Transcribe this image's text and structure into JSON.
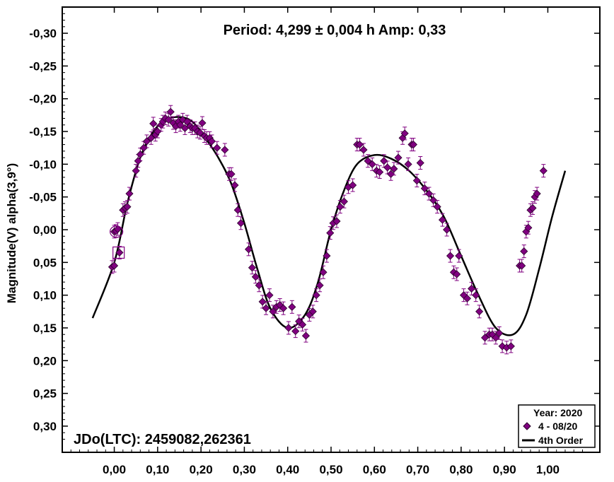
{
  "chart_data": {
    "type": "scatter",
    "title": "Period: 4,299 ± 0,004 h  Amp: 0,33",
    "ylabel": "Magnitude(V) alpha(3,9°)",
    "xlabel": "",
    "annotation": "JDo(LTC): 2459082,262361",
    "xlim": [
      -0.12,
      1.12
    ],
    "ylim": [
      -0.34,
      0.34
    ],
    "y_inverted": true,
    "x_ticks": [
      0.0,
      0.1,
      0.2,
      0.3,
      0.4,
      0.5,
      0.6,
      0.7,
      0.8,
      0.9,
      1.0
    ],
    "x_tick_labels": [
      "0,00",
      "0,10",
      "0,20",
      "0,30",
      "0,40",
      "0,50",
      "0,60",
      "0,70",
      "0,80",
      "0,90",
      "1,00"
    ],
    "y_ticks": [
      -0.3,
      -0.25,
      -0.2,
      -0.15,
      -0.1,
      -0.05,
      0.0,
      0.05,
      0.1,
      0.15,
      0.2,
      0.25,
      0.3
    ],
    "y_tick_labels": [
      "-0,30",
      "-0,25",
      "-0,20",
      "-0,15",
      "-0,10",
      "-0,05",
      "0,00",
      "0,05",
      "0,10",
      "0,15",
      "0,20",
      "0,25",
      "0,30"
    ],
    "legend": {
      "position": "bottom-right",
      "title": "Year: 2020",
      "entries": [
        "4 - 08/20",
        "4th Order"
      ]
    },
    "marker_color": "#800080",
    "series": [
      {
        "name": "4 - 08/20",
        "marker": "diamond",
        "points": [
          [
            -0.005,
            0.057
          ],
          [
            0.0,
            0.055
          ],
          [
            0.0,
            0.003
          ],
          [
            0.004,
            0.002
          ],
          [
            0.008,
            -0.001
          ],
          [
            0.012,
            0.035
          ],
          [
            0.02,
            -0.03
          ],
          [
            0.025,
            -0.033
          ],
          [
            0.03,
            -0.035
          ],
          [
            0.035,
            -0.055
          ],
          [
            0.05,
            -0.09
          ],
          [
            0.055,
            -0.105
          ],
          [
            0.06,
            -0.115
          ],
          [
            0.068,
            -0.125
          ],
          [
            0.075,
            -0.135
          ],
          [
            0.085,
            -0.14
          ],
          [
            0.09,
            -0.162
          ],
          [
            0.095,
            -0.145
          ],
          [
            0.1,
            -0.15
          ],
          [
            0.108,
            -0.16
          ],
          [
            0.112,
            -0.165
          ],
          [
            0.118,
            -0.17
          ],
          [
            0.125,
            -0.168
          ],
          [
            0.13,
            -0.18
          ],
          [
            0.136,
            -0.163
          ],
          [
            0.142,
            -0.158
          ],
          [
            0.148,
            -0.165
          ],
          [
            0.152,
            -0.16
          ],
          [
            0.158,
            -0.168
          ],
          [
            0.163,
            -0.155
          ],
          [
            0.168,
            -0.165
          ],
          [
            0.175,
            -0.158
          ],
          [
            0.18,
            -0.155
          ],
          [
            0.186,
            -0.155
          ],
          [
            0.192,
            -0.15
          ],
          [
            0.198,
            -0.148
          ],
          [
            0.203,
            -0.163
          ],
          [
            0.208,
            -0.143
          ],
          [
            0.213,
            -0.14
          ],
          [
            0.22,
            -0.14
          ],
          [
            0.225,
            -0.135
          ],
          [
            0.237,
            -0.125
          ],
          [
            0.255,
            -0.122
          ],
          [
            0.265,
            -0.085
          ],
          [
            0.27,
            -0.085
          ],
          [
            0.278,
            -0.068
          ],
          [
            0.285,
            -0.03
          ],
          [
            0.292,
            -0.01
          ],
          [
            0.31,
            0.03
          ],
          [
            0.318,
            0.058
          ],
          [
            0.326,
            0.072
          ],
          [
            0.334,
            0.085
          ],
          [
            0.342,
            0.11
          ],
          [
            0.35,
            0.12
          ],
          [
            0.358,
            0.1
          ],
          [
            0.366,
            0.125
          ],
          [
            0.374,
            0.118
          ],
          [
            0.382,
            0.115
          ],
          [
            0.39,
            0.12
          ],
          [
            0.402,
            0.15
          ],
          [
            0.41,
            0.118
          ],
          [
            0.418,
            0.155
          ],
          [
            0.426,
            0.14
          ],
          [
            0.434,
            0.145
          ],
          [
            0.442,
            0.162
          ],
          [
            0.45,
            0.13
          ],
          [
            0.458,
            0.125
          ],
          [
            0.466,
            0.1
          ],
          [
            0.474,
            0.085
          ],
          [
            0.482,
            0.065
          ],
          [
            0.49,
            0.04
          ],
          [
            0.498,
            0.005
          ],
          [
            0.505,
            -0.01
          ],
          [
            0.513,
            -0.013
          ],
          [
            0.521,
            -0.035
          ],
          [
            0.53,
            -0.043
          ],
          [
            0.54,
            -0.065
          ],
          [
            0.55,
            -0.068
          ],
          [
            0.56,
            -0.13
          ],
          [
            0.566,
            -0.13
          ],
          [
            0.575,
            -0.122
          ],
          [
            0.585,
            -0.105
          ],
          [
            0.595,
            -0.1
          ],
          [
            0.605,
            -0.09
          ],
          [
            0.612,
            -0.088
          ],
          [
            0.622,
            -0.105
          ],
          [
            0.63,
            -0.095
          ],
          [
            0.638,
            -0.085
          ],
          [
            0.645,
            -0.093
          ],
          [
            0.655,
            -0.11
          ],
          [
            0.665,
            -0.14
          ],
          [
            0.67,
            -0.147
          ],
          [
            0.678,
            -0.1
          ],
          [
            0.686,
            -0.13
          ],
          [
            0.69,
            -0.13
          ],
          [
            0.698,
            -0.075
          ],
          [
            0.706,
            -0.102
          ],
          [
            0.716,
            -0.063
          ],
          [
            0.726,
            -0.055
          ],
          [
            0.736,
            -0.045
          ],
          [
            0.745,
            -0.035
          ],
          [
            0.757,
            -0.015
          ],
          [
            0.767,
            0.0
          ],
          [
            0.775,
            0.04
          ],
          [
            0.783,
            0.065
          ],
          [
            0.79,
            0.068
          ],
          [
            0.795,
            0.04
          ],
          [
            0.806,
            0.1
          ],
          [
            0.814,
            0.105
          ],
          [
            0.824,
            0.09
          ],
          [
            0.834,
            0.1
          ],
          [
            0.842,
            0.125
          ],
          [
            0.855,
            0.165
          ],
          [
            0.865,
            0.16
          ],
          [
            0.872,
            0.16
          ],
          [
            0.88,
            0.165
          ],
          [
            0.888,
            0.158
          ],
          [
            0.895,
            0.178
          ],
          [
            0.905,
            0.18
          ],
          [
            0.915,
            0.178
          ],
          [
            0.935,
            0.055
          ],
          [
            0.94,
            0.055
          ],
          [
            0.945,
            0.033
          ],
          [
            0.95,
            0.003
          ],
          [
            0.955,
            -0.003
          ],
          [
            0.96,
            -0.03
          ],
          [
            0.965,
            -0.033
          ],
          [
            0.97,
            -0.05
          ],
          [
            0.975,
            -0.055
          ],
          [
            0.99,
            -0.09
          ]
        ]
      },
      {
        "name": "4th Order",
        "type": "line",
        "points": [
          [
            -0.05,
            0.135
          ],
          [
            0.0,
            0.05
          ],
          [
            0.03,
            -0.04
          ],
          [
            0.06,
            -0.11
          ],
          [
            0.09,
            -0.15
          ],
          [
            0.12,
            -0.168
          ],
          [
            0.15,
            -0.172
          ],
          [
            0.18,
            -0.165
          ],
          [
            0.21,
            -0.14
          ],
          [
            0.24,
            -0.11
          ],
          [
            0.27,
            -0.07
          ],
          [
            0.3,
            -0.01
          ],
          [
            0.33,
            0.06
          ],
          [
            0.36,
            0.12
          ],
          [
            0.4,
            0.15
          ],
          [
            0.44,
            0.13
          ],
          [
            0.47,
            0.08
          ],
          [
            0.5,
            0.0
          ],
          [
            0.53,
            -0.06
          ],
          [
            0.56,
            -0.1
          ],
          [
            0.6,
            -0.114
          ],
          [
            0.64,
            -0.108
          ],
          [
            0.68,
            -0.09
          ],
          [
            0.72,
            -0.06
          ],
          [
            0.76,
            -0.02
          ],
          [
            0.8,
            0.04
          ],
          [
            0.84,
            0.1
          ],
          [
            0.88,
            0.15
          ],
          [
            0.92,
            0.16
          ],
          [
            0.95,
            0.13
          ],
          [
            0.98,
            0.06
          ],
          [
            1.01,
            -0.02
          ],
          [
            1.04,
            -0.09
          ]
        ]
      }
    ],
    "special_markers": [
      {
        "shape": "circle",
        "x": 0.005,
        "y": 0.003
      },
      {
        "shape": "square",
        "x": 0.01,
        "y": 0.035
      }
    ]
  }
}
